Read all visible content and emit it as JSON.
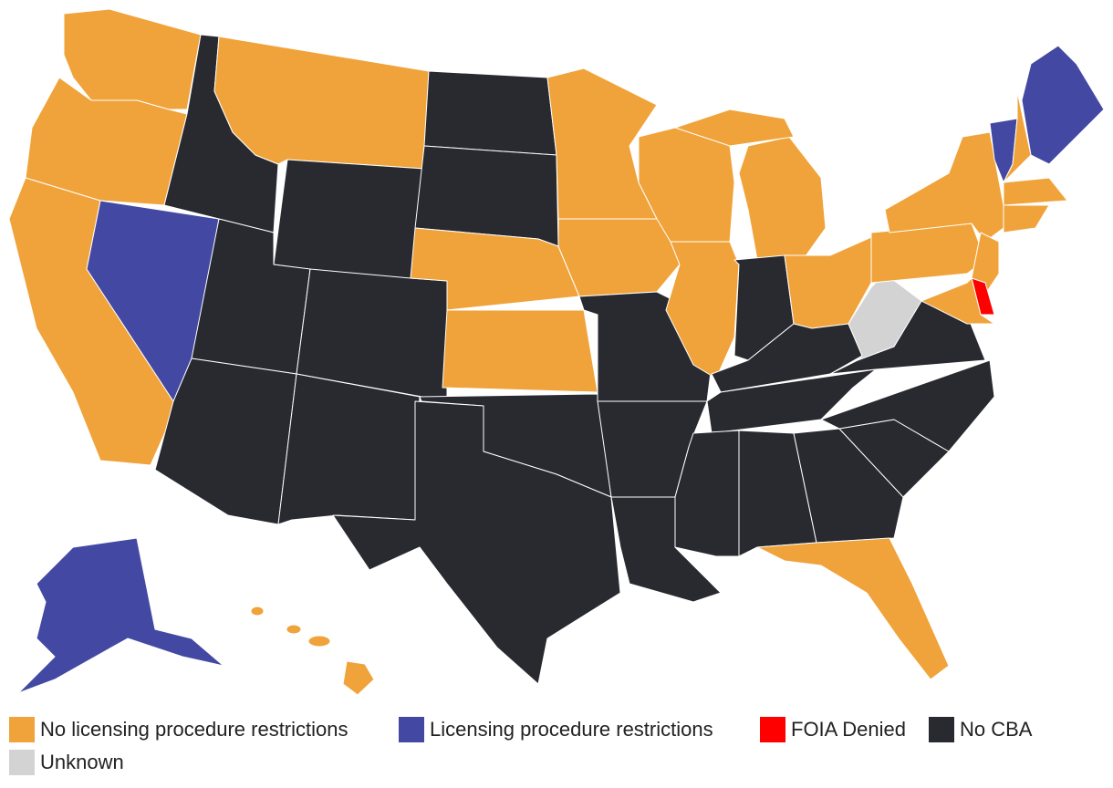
{
  "legend": [
    {
      "label": "No licensing procedure restrictions",
      "color": "#f0a33a"
    },
    {
      "label": "Licensing procedure restrictions",
      "color": "#4349a3"
    },
    {
      "label": "FOIA Denied",
      "color": "#ff0000"
    },
    {
      "label": "No CBA",
      "color": "#282a30"
    },
    {
      "label": "Unknown",
      "color": "#d3d3d3"
    }
  ]
}
